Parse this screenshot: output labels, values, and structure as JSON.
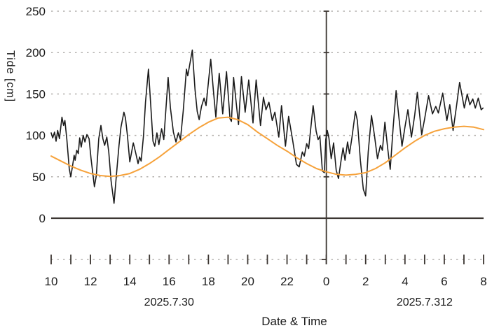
{
  "chart_data": {
    "type": "line",
    "title": "",
    "xlabel": "Date & Time",
    "ylabel": "Tide [cm]",
    "grid": "dashed horizontal gridlines at 50 cm steps, solid baseline at 0",
    "legend": "none",
    "y_axis": {
      "range": [
        0,
        250
      ],
      "ticks": [
        0,
        50,
        100,
        150,
        200,
        250
      ]
    },
    "x_axis": {
      "unit": "hour",
      "range_hours": [
        10,
        32
      ],
      "tick_hours": [
        10,
        11,
        12,
        13,
        14,
        15,
        16,
        17,
        18,
        19,
        20,
        21,
        22,
        23,
        24,
        25,
        26,
        27,
        28,
        29,
        30,
        31,
        32
      ],
      "labels": [
        {
          "hour": 10,
          "text": "10"
        },
        {
          "hour": 12,
          "text": "12"
        },
        {
          "hour": 14,
          "text": "14"
        },
        {
          "hour": 16,
          "text": "16"
        },
        {
          "hour": 18,
          "text": "18"
        },
        {
          "hour": 20,
          "text": "20"
        },
        {
          "hour": 22,
          "text": "22"
        },
        {
          "hour": 24,
          "text": "0"
        },
        {
          "hour": 26,
          "text": "2"
        },
        {
          "hour": 28,
          "text": "4"
        },
        {
          "hour": 30,
          "text": "6"
        },
        {
          "hour": 32,
          "text": "8"
        }
      ],
      "date_labels": [
        {
          "hour": 16.0,
          "text": "2025.7.30"
        },
        {
          "hour": 29.0,
          "text": "2025.7.312"
        }
      ],
      "midnight_divider_hour": 24
    },
    "colors": {
      "observed": "#1b1b1b",
      "predicted": "#f6a23b",
      "grid": "#b3b0ad",
      "axis": "#3c3632",
      "text": "#1a1a1a"
    },
    "series": [
      {
        "name": "observed-tide",
        "color": "#1b1b1b",
        "width": 1.6,
        "points": [
          [
            10.0,
            103
          ],
          [
            10.08,
            97
          ],
          [
            10.17,
            104
          ],
          [
            10.25,
            93
          ],
          [
            10.33,
            106
          ],
          [
            10.42,
            96
          ],
          [
            10.55,
            122
          ],
          [
            10.63,
            112
          ],
          [
            10.7,
            118
          ],
          [
            10.8,
            95
          ],
          [
            10.92,
            60
          ],
          [
            11.0,
            50
          ],
          [
            11.08,
            62
          ],
          [
            11.17,
            76
          ],
          [
            11.22,
            70
          ],
          [
            11.3,
            82
          ],
          [
            11.38,
            78
          ],
          [
            11.45,
            97
          ],
          [
            11.53,
            86
          ],
          [
            11.63,
            100
          ],
          [
            11.72,
            92
          ],
          [
            11.82,
            101
          ],
          [
            11.93,
            96
          ],
          [
            12.03,
            72
          ],
          [
            12.2,
            38
          ],
          [
            12.3,
            52
          ],
          [
            12.42,
            96
          ],
          [
            12.53,
            112
          ],
          [
            12.63,
            96
          ],
          [
            12.72,
            88
          ],
          [
            12.83,
            98
          ],
          [
            12.93,
            80
          ],
          [
            13.05,
            45
          ],
          [
            13.2,
            18
          ],
          [
            13.33,
            55
          ],
          [
            13.45,
            88
          ],
          [
            13.55,
            110
          ],
          [
            13.7,
            128
          ],
          [
            13.78,
            121
          ],
          [
            13.88,
            100
          ],
          [
            14.0,
            68
          ],
          [
            14.08,
            78
          ],
          [
            14.18,
            91
          ],
          [
            14.3,
            79
          ],
          [
            14.42,
            66
          ],
          [
            14.5,
            74
          ],
          [
            14.58,
            69
          ],
          [
            14.7,
            100
          ],
          [
            14.8,
            140
          ],
          [
            14.95,
            180
          ],
          [
            15.05,
            143
          ],
          [
            15.18,
            93
          ],
          [
            15.27,
            87
          ],
          [
            15.38,
            103
          ],
          [
            15.48,
            89
          ],
          [
            15.62,
            108
          ],
          [
            15.73,
            95
          ],
          [
            15.95,
            170
          ],
          [
            16.07,
            133
          ],
          [
            16.22,
            104
          ],
          [
            16.35,
            92
          ],
          [
            16.47,
            103
          ],
          [
            16.58,
            95
          ],
          [
            16.72,
            130
          ],
          [
            16.88,
            180
          ],
          [
            16.95,
            172
          ],
          [
            17.18,
            203
          ],
          [
            17.32,
            155
          ],
          [
            17.43,
            129
          ],
          [
            17.53,
            119
          ],
          [
            17.65,
            135
          ],
          [
            17.78,
            145
          ],
          [
            17.88,
            136
          ],
          [
            18.12,
            192
          ],
          [
            18.25,
            155
          ],
          [
            18.38,
            122
          ],
          [
            18.55,
            175
          ],
          [
            18.73,
            126
          ],
          [
            18.92,
            177
          ],
          [
            19.1,
            120
          ],
          [
            19.17,
            117
          ],
          [
            19.28,
            170
          ],
          [
            19.42,
            138
          ],
          [
            19.53,
            113
          ],
          [
            19.68,
            171
          ],
          [
            19.87,
            128
          ],
          [
            20.05,
            167
          ],
          [
            20.27,
            115
          ],
          [
            20.43,
            167
          ],
          [
            20.65,
            112
          ],
          [
            20.8,
            146
          ],
          [
            20.93,
            131
          ],
          [
            21.08,
            140
          ],
          [
            21.25,
            118
          ],
          [
            21.38,
            128
          ],
          [
            21.58,
            98
          ],
          [
            21.72,
            136
          ],
          [
            21.92,
            87
          ],
          [
            22.08,
            123
          ],
          [
            22.28,
            95
          ],
          [
            22.48,
            65
          ],
          [
            22.62,
            62
          ],
          [
            22.78,
            80
          ],
          [
            22.88,
            75
          ],
          [
            23.0,
            90
          ],
          [
            23.1,
            84
          ],
          [
            23.33,
            136
          ],
          [
            23.48,
            105
          ],
          [
            23.58,
            95
          ],
          [
            23.67,
            99
          ],
          [
            23.8,
            57
          ],
          [
            23.9,
            55
          ],
          [
            23.97,
            95
          ],
          [
            24.05,
            106
          ],
          [
            24.13,
            97
          ],
          [
            24.25,
            72
          ],
          [
            24.37,
            91
          ],
          [
            24.5,
            58
          ],
          [
            24.62,
            48
          ],
          [
            24.75,
            70
          ],
          [
            24.85,
            85
          ],
          [
            24.95,
            70
          ],
          [
            25.08,
            92
          ],
          [
            25.18,
            78
          ],
          [
            25.3,
            97
          ],
          [
            25.48,
            129
          ],
          [
            25.58,
            118
          ],
          [
            25.73,
            70
          ],
          [
            25.88,
            35
          ],
          [
            26.0,
            27
          ],
          [
            26.13,
            80
          ],
          [
            26.3,
            124
          ],
          [
            26.45,
            100
          ],
          [
            26.6,
            72
          ],
          [
            26.75,
            88
          ],
          [
            26.85,
            82
          ],
          [
            26.98,
            116
          ],
          [
            27.12,
            85
          ],
          [
            27.25,
            59
          ],
          [
            27.4,
            110
          ],
          [
            27.55,
            154
          ],
          [
            27.7,
            120
          ],
          [
            27.85,
            87
          ],
          [
            28.0,
            110
          ],
          [
            28.15,
            131
          ],
          [
            28.33,
            98
          ],
          [
            28.5,
            125
          ],
          [
            28.63,
            152
          ],
          [
            28.85,
            101
          ],
          [
            29.0,
            120
          ],
          [
            29.2,
            148
          ],
          [
            29.4,
            126
          ],
          [
            29.57,
            135
          ],
          [
            29.7,
            127
          ],
          [
            29.92,
            151
          ],
          [
            30.13,
            118
          ],
          [
            30.28,
            137
          ],
          [
            30.45,
            106
          ],
          [
            30.62,
            135
          ],
          [
            30.78,
            164
          ],
          [
            31.02,
            133
          ],
          [
            31.17,
            150
          ],
          [
            31.3,
            137
          ],
          [
            31.45,
            144
          ],
          [
            31.58,
            133
          ],
          [
            31.73,
            145
          ],
          [
            31.88,
            131
          ],
          [
            31.97,
            133
          ]
        ]
      },
      {
        "name": "predicted-tide",
        "color": "#f6a23b",
        "width": 2,
        "points": [
          [
            10.0,
            75
          ],
          [
            10.5,
            69
          ],
          [
            11.0,
            63
          ],
          [
            11.5,
            58
          ],
          [
            12.0,
            54
          ],
          [
            12.5,
            51.5
          ],
          [
            13.0,
            50.5
          ],
          [
            13.5,
            51.5
          ],
          [
            14.0,
            54
          ],
          [
            14.5,
            59
          ],
          [
            15.0,
            66
          ],
          [
            15.5,
            74
          ],
          [
            16.0,
            83
          ],
          [
            16.5,
            92
          ],
          [
            17.0,
            101
          ],
          [
            17.5,
            109
          ],
          [
            18.0,
            116
          ],
          [
            18.5,
            121
          ],
          [
            19.0,
            122
          ],
          [
            19.5,
            119
          ],
          [
            20.0,
            113
          ],
          [
            20.5,
            104
          ],
          [
            21.0,
            96
          ],
          [
            21.5,
            88
          ],
          [
            22.0,
            81
          ],
          [
            22.5,
            73
          ],
          [
            23.0,
            66
          ],
          [
            23.5,
            60
          ],
          [
            24.0,
            56
          ],
          [
            24.5,
            53
          ],
          [
            25.0,
            52
          ],
          [
            25.5,
            53
          ],
          [
            26.0,
            55
          ],
          [
            26.5,
            60
          ],
          [
            27.0,
            67
          ],
          [
            27.5,
            76
          ],
          [
            28.0,
            85
          ],
          [
            28.5,
            93
          ],
          [
            29.0,
            100
          ],
          [
            29.5,
            105
          ],
          [
            30.0,
            108
          ],
          [
            30.5,
            110
          ],
          [
            31.0,
            111
          ],
          [
            31.5,
            110
          ],
          [
            32.0,
            107
          ]
        ]
      }
    ]
  }
}
